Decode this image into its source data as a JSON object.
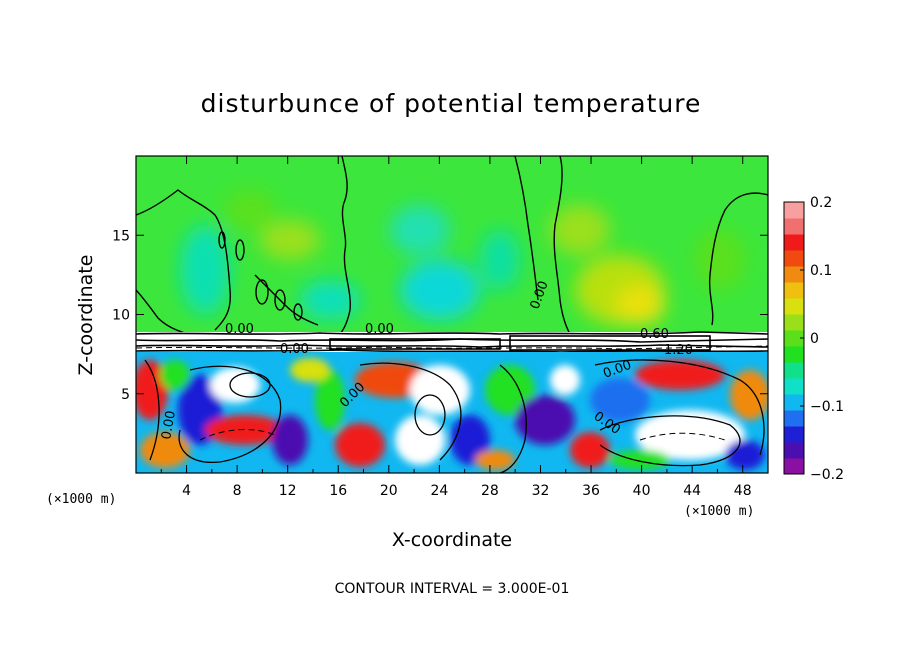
{
  "chart_data": {
    "type": "heatmap",
    "title": "disturbunce of potential temperature",
    "xlabel": "X-coordinate",
    "ylabel": "Z-coordinate",
    "x_unit_left": "(×1000 m)",
    "x_unit_right": "(×1000 m)",
    "xlim": [
      0,
      50
    ],
    "ylim": [
      0,
      20
    ],
    "x_ticks": [
      4,
      8,
      12,
      16,
      20,
      24,
      28,
      32,
      36,
      40,
      44,
      48
    ],
    "x_tick_labels": [
      "4",
      "8",
      "12",
      "16",
      "20",
      "24",
      "28",
      "32",
      "36",
      "40",
      "44",
      "48"
    ],
    "y_ticks": [
      5,
      10,
      15
    ],
    "y_tick_labels": [
      "5",
      "10",
      "15"
    ],
    "colorbar": {
      "min": -0.2,
      "max": 0.2,
      "tick_labels": [
        "0.2",
        "0.1",
        "0",
        "−0.1",
        "−0.2"
      ],
      "tick_values": [
        0.2,
        0.1,
        0,
        -0.1,
        -0.2
      ],
      "colors": [
        "#8b0fa3",
        "#4b0fb0",
        "#1f1fd6",
        "#1f6ff0",
        "#10b7f0",
        "#10e0c8",
        "#10e08a",
        "#20e020",
        "#5ae01a",
        "#9ae01a",
        "#d8e010",
        "#f0c010",
        "#f08a10",
        "#f04a10",
        "#f01a1a",
        "#f07070",
        "#f8a0a0"
      ]
    },
    "contour_labels": [
      "0.00",
      "0.00",
      "0.00",
      "0.00",
      "0.60",
      "1.20",
      "0.00",
      "0.00",
      "0.00",
      "0.00"
    ],
    "contour_interval": "CONTOUR INTERVAL = 3.000E-01"
  }
}
